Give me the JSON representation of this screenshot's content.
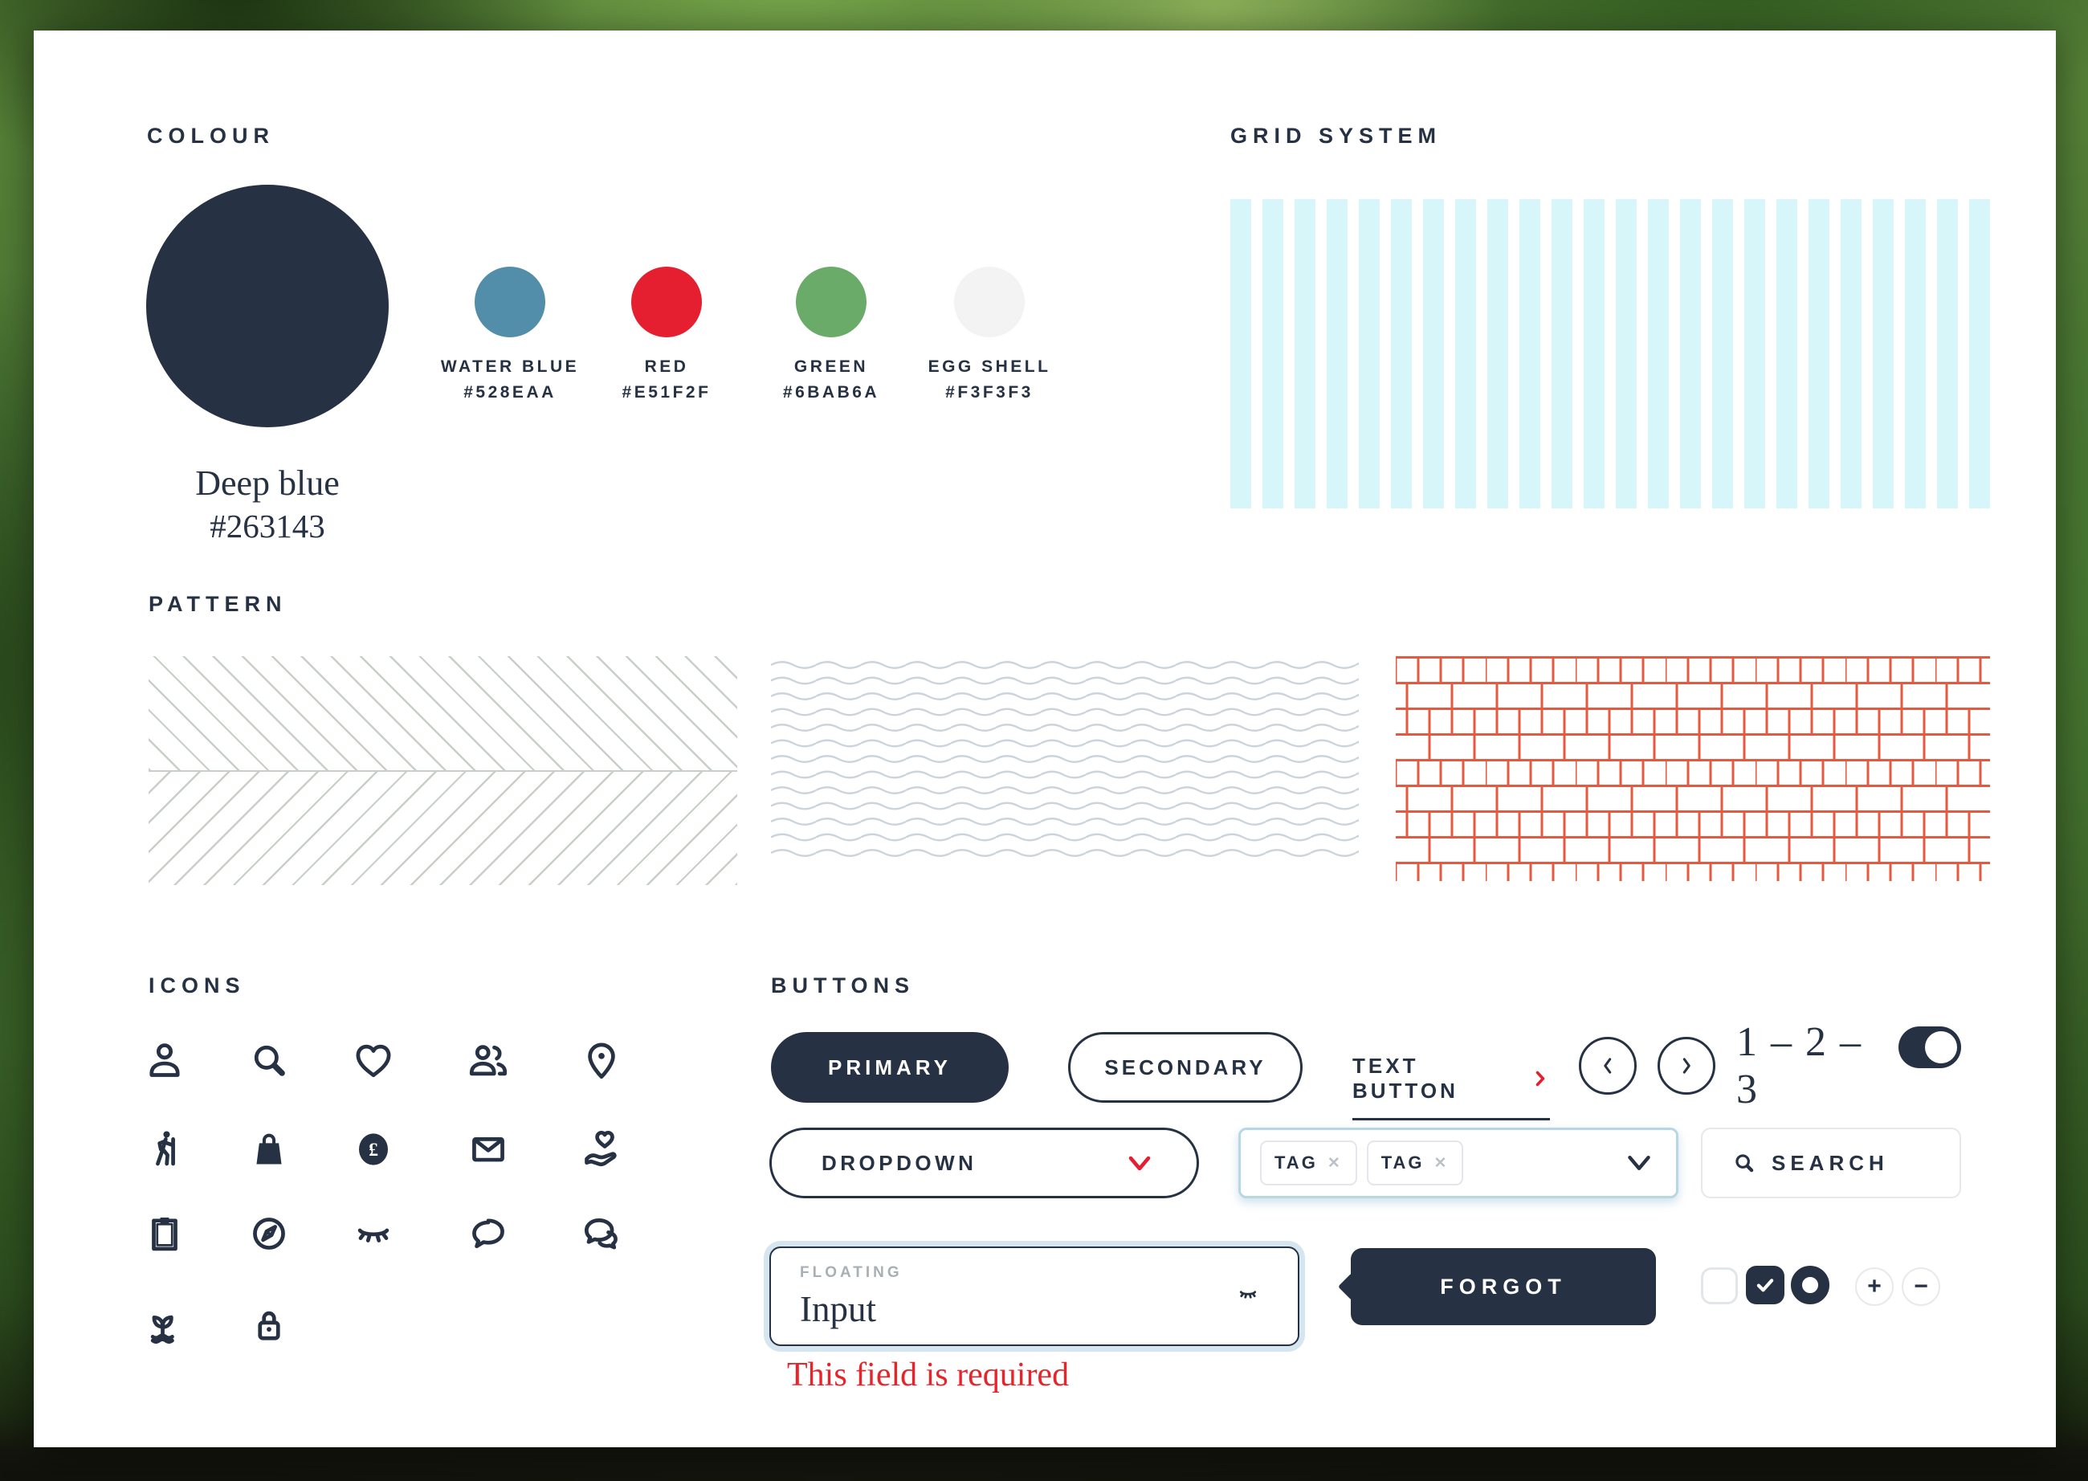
{
  "window": {
    "type": "brand-style-guide-sheet"
  },
  "colors": {
    "navy": "#263143",
    "red": "#E51F2F",
    "water_blue": "#528EAA",
    "green": "#6BAB6A",
    "egg_shell": "#F3F3F3",
    "grid_column": "#D7F6F9",
    "herringbone_line": "#C8CFC8",
    "wave_line": "#CBD4DC",
    "brick_line": "#E4593F",
    "chip_border": "#E3E6EA",
    "focus_ring": "#B7D7E4",
    "muted_label": "#A8AFB6",
    "error_red": "#E8242B"
  },
  "colour": {
    "title": "COLOUR",
    "primary": {
      "name": "Deep blue",
      "hex": "#263143"
    },
    "swatches": [
      {
        "name": "WATER BLUE",
        "hex": "#528EAA"
      },
      {
        "name": "RED",
        "hex": "#E51F2F"
      },
      {
        "name": "GREEN",
        "hex": "#6BAB6A"
      },
      {
        "name": "EGG SHELL",
        "hex": "#F3F3F3"
      }
    ]
  },
  "grid": {
    "title": "GRID SYSTEM",
    "columns": 24,
    "column_color": "#D7F6F9"
  },
  "pattern": {
    "title": "PATTERN",
    "styles": [
      "herringbone",
      "waves",
      "bricks"
    ]
  },
  "icons": {
    "title": "ICONS",
    "names": [
      "user",
      "search",
      "heart",
      "users",
      "map-pin",
      "hiker",
      "shopping-bag",
      "pound-coin",
      "mail",
      "heart-in-hand",
      "clipboard",
      "compass",
      "closed-eye",
      "chat",
      "chats",
      "sprout",
      "padlock"
    ]
  },
  "buttons": {
    "title": "BUTTONS",
    "primary_label": "PRIMARY",
    "secondary_label": "SECONDARY",
    "text_button_label": "TEXT BUTTON",
    "steps": "1 – 2 – 3",
    "toggle_on": true,
    "dropdown_label": "DROPDOWN",
    "tags": [
      "TAG",
      "TAG"
    ],
    "search_label": "SEARCH",
    "floating_label": "FLOATING",
    "floating_value": "Input",
    "forgot_label": "FORGOT",
    "error": "This field is required"
  }
}
